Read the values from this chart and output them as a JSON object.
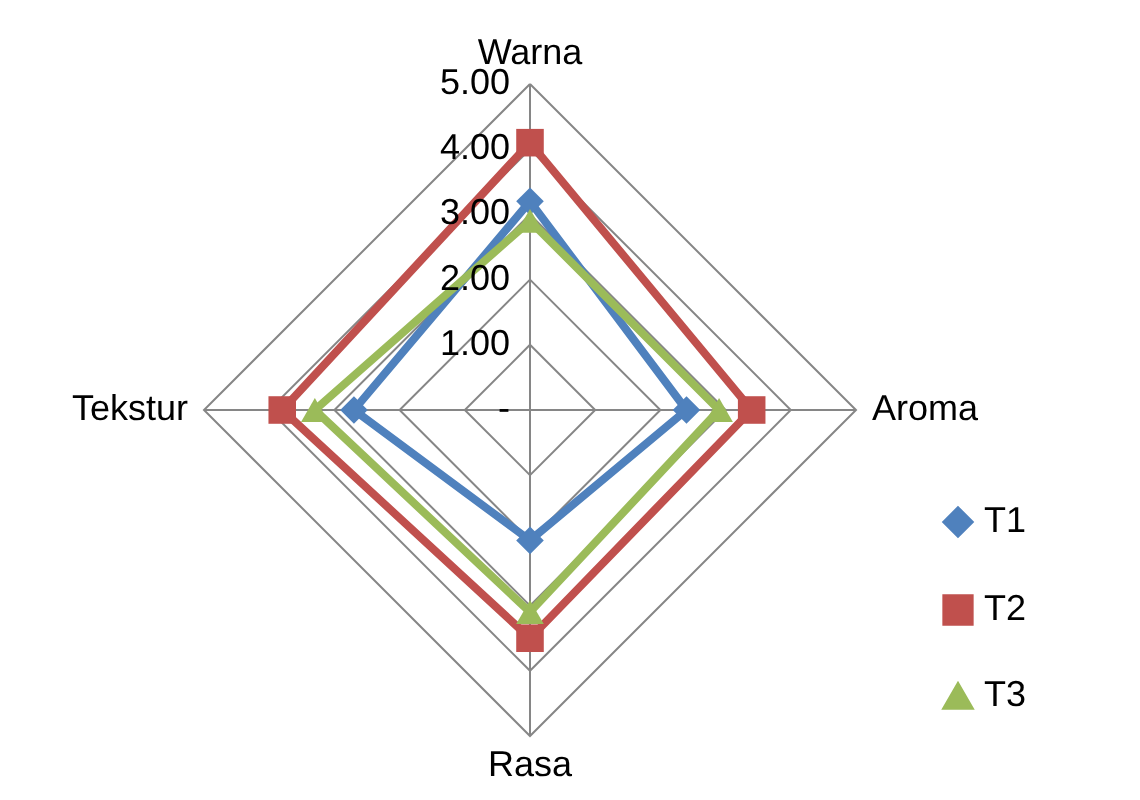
{
  "chart_data": {
    "type": "radar",
    "categories": [
      "Warna",
      "Aroma",
      "Rasa",
      "Tekstur"
    ],
    "series": [
      {
        "name": "T1",
        "color": "#4f81bd",
        "marker": "diamond",
        "values": [
          3.2,
          2.4,
          2.0,
          2.7
        ]
      },
      {
        "name": "T2",
        "color": "#c0504d",
        "marker": "square",
        "values": [
          4.1,
          3.4,
          3.5,
          3.8
        ]
      },
      {
        "name": "T3",
        "color": "#9bbb59",
        "marker": "triangle",
        "values": [
          2.9,
          2.9,
          3.1,
          3.3
        ]
      }
    ],
    "ylim": [
      0,
      5
    ],
    "yticks": [
      {
        "value": 0,
        "label": "-"
      },
      {
        "value": 1,
        "label": "1.00"
      },
      {
        "value": 2,
        "label": "2.00"
      },
      {
        "value": 3,
        "label": "3.00"
      },
      {
        "value": 4,
        "label": "4.00"
      },
      {
        "value": 5,
        "label": "5.00"
      }
    ],
    "grid": true,
    "legend": "bottom right"
  }
}
